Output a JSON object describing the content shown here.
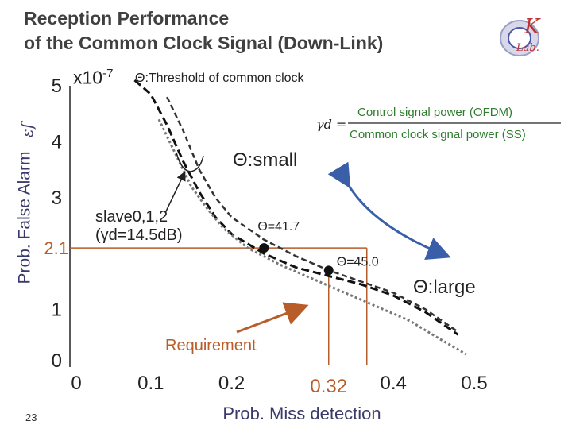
{
  "slide": {
    "title_line1": "Reception Performance",
    "title_line2": "of the Common Clock Signal (Down-Link)",
    "page_number": "23",
    "logo_letters": "K Lab."
  },
  "colors": {
    "title": "#404040",
    "axis_text": "#3a3a6a",
    "requirement": "#b85c2a",
    "arrow_blue": "#3a5fa8",
    "green_text": "#2e7d2e",
    "curve": "#111111"
  },
  "chart_data": {
    "type": "line",
    "xlabel": "Prob. Miss detection",
    "ylabel": "Prob. False Alarm",
    "ylabel_symbol": "εf",
    "y_multiplier": "x10",
    "y_multiplier_exp": "-7",
    "threshold_label": "Θ:Threshold of common clock",
    "xlim": [
      0,
      0.5
    ],
    "ylim": [
      0,
      5
    ],
    "x_ticks": [
      "0",
      "0.1",
      "0.2",
      "0.4",
      "0.5"
    ],
    "y_ticks": [
      "0",
      "1",
      "3",
      "4",
      "5"
    ],
    "highlight_x_tick": "0.32",
    "highlight_y_tick": "2.1",
    "series": [
      {
        "style": "dash",
        "x": [
          0.08,
          0.1,
          0.12,
          0.14,
          0.16,
          0.18,
          0.2,
          0.24,
          0.28,
          0.32,
          0.36,
          0.4,
          0.44,
          0.48
        ],
        "y": [
          5.1,
          4.85,
          4.3,
          3.65,
          3.1,
          2.65,
          2.35,
          2.0,
          1.75,
          1.6,
          1.45,
          1.25,
          0.95,
          0.55
        ]
      },
      {
        "style": "dash2",
        "x": [
          0.12,
          0.14,
          0.16,
          0.18,
          0.2,
          0.24,
          0.28,
          0.32,
          0.36,
          0.4,
          0.44,
          0.48
        ],
        "y": [
          4.8,
          4.2,
          3.5,
          3.0,
          2.65,
          2.25,
          1.95,
          1.7,
          1.5,
          1.3,
          1.0,
          0.6
        ]
      },
      {
        "style": "dotted",
        "x": [
          0.11,
          0.13,
          0.15,
          0.17,
          0.19,
          0.22,
          0.26,
          0.3,
          0.34,
          0.38,
          0.42,
          0.46,
          0.49
        ],
        "y": [
          4.4,
          3.8,
          3.2,
          2.8,
          2.45,
          2.1,
          1.8,
          1.55,
          1.3,
          1.05,
          0.8,
          0.45,
          0.2
        ]
      }
    ],
    "points": [
      {
        "label": "Θ=41.7",
        "x": 0.24,
        "y": 2.1
      },
      {
        "label": "Θ=45.0",
        "x": 0.32,
        "y": 1.7
      }
    ],
    "annotations": {
      "curve_label_line1": "slave0,1,2",
      "curve_label_line2": "(γd=14.5dB)",
      "small": "Θ:small",
      "large": "Θ:large",
      "requirement": "Requirement",
      "gamma_lhs": "γd =",
      "gamma_numerator": "Control signal power (OFDM)",
      "gamma_denominator": "Common clock signal power (SS)"
    }
  }
}
